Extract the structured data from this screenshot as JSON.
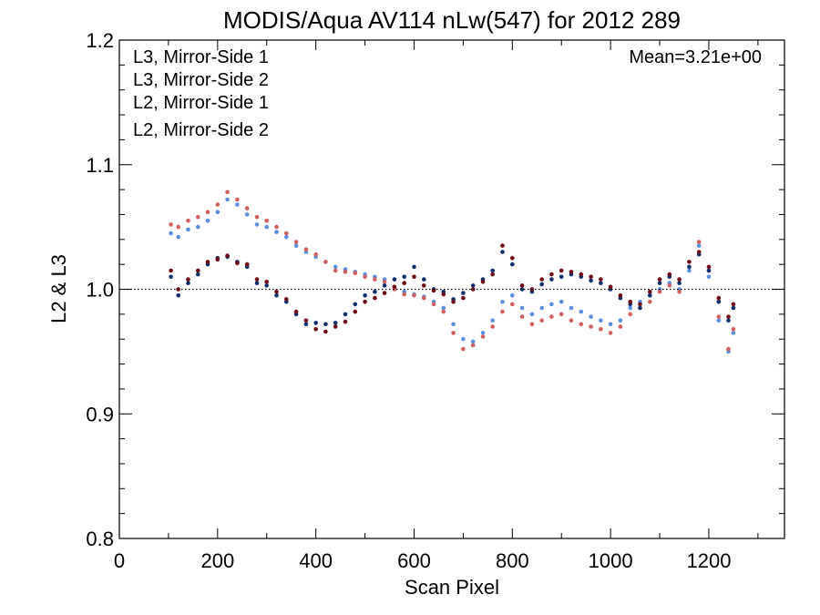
{
  "chart_data": {
    "type": "scatter",
    "title": "MODIS/Aqua AV114 nLw(547) for 2012 289",
    "xlabel": "Scan Pixel",
    "ylabel": "L2 & L3",
    "xlim": [
      0,
      1354
    ],
    "ylim": [
      0.8,
      1.2
    ],
    "x_ticks": [
      0,
      200,
      400,
      600,
      800,
      1000,
      1200
    ],
    "y_ticks": [
      0.8,
      0.9,
      1.0,
      1.1,
      1.2
    ],
    "x_tick_labels": [
      "0",
      "200",
      "400",
      "600",
      "800",
      "1000",
      "1200"
    ],
    "y_tick_labels": [
      "0.8",
      "0.9",
      "1.0",
      "1.1",
      "1.2"
    ],
    "reference_line": 1.0,
    "annotation": "Mean=3.21e+00",
    "annotation_color": "#d06060",
    "legend_position": "top-left",
    "grid": false,
    "series": [
      {
        "name": "L3, Mirror-Side 1",
        "color": "#0d2f6e",
        "x": [
          105,
          120,
          140,
          160,
          180,
          200,
          220,
          240,
          260,
          280,
          300,
          320,
          340,
          360,
          380,
          400,
          420,
          440,
          460,
          480,
          500,
          520,
          540,
          560,
          580,
          600,
          620,
          640,
          660,
          680,
          700,
          720,
          740,
          760,
          780,
          800,
          820,
          840,
          860,
          880,
          900,
          920,
          940,
          960,
          980,
          1000,
          1020,
          1040,
          1060,
          1080,
          1100,
          1120,
          1140,
          1160,
          1180,
          1200,
          1220,
          1240,
          1250
        ],
        "y": [
          1.01,
          0.995,
          1.005,
          1.012,
          1.02,
          1.025,
          1.026,
          1.022,
          1.018,
          1.005,
          1.003,
          0.995,
          0.99,
          0.98,
          0.972,
          0.973,
          0.972,
          0.973,
          0.98,
          0.988,
          0.995,
          0.998,
          1.003,
          1.008,
          1.01,
          1.018,
          1.008,
          1.0,
          0.998,
          0.992,
          0.997,
          1.003,
          1.008,
          1.015,
          1.03,
          1.02,
          1.0,
          0.998,
          1.004,
          1.008,
          1.01,
          1.012,
          1.01,
          1.007,
          1.005,
          1.0,
          0.993,
          0.988,
          0.985,
          0.995,
          1.005,
          1.01,
          1.005,
          1.018,
          1.028,
          1.015,
          0.99,
          0.975,
          0.985
        ]
      },
      {
        "name": "L3, Mirror-Side 2",
        "color": "#6e0a14",
        "x": [
          105,
          120,
          140,
          160,
          180,
          200,
          220,
          240,
          260,
          280,
          300,
          320,
          340,
          360,
          380,
          400,
          420,
          440,
          460,
          480,
          500,
          520,
          540,
          560,
          580,
          600,
          620,
          640,
          660,
          680,
          700,
          720,
          740,
          760,
          780,
          800,
          820,
          840,
          860,
          880,
          900,
          920,
          940,
          960,
          980,
          1000,
          1020,
          1040,
          1060,
          1080,
          1100,
          1120,
          1140,
          1160,
          1180,
          1200,
          1220,
          1240,
          1250
        ],
        "y": [
          1.015,
          1.0,
          1.008,
          1.015,
          1.022,
          1.024,
          1.027,
          1.021,
          1.02,
          1.008,
          1.006,
          0.998,
          0.992,
          0.982,
          0.975,
          0.968,
          0.966,
          0.97,
          0.974,
          0.982,
          0.99,
          0.993,
          0.997,
          1.002,
          1.005,
          1.01,
          1.003,
          0.999,
          0.996,
          0.99,
          0.993,
          1.0,
          1.006,
          1.012,
          1.035,
          1.025,
          1.003,
          1.0,
          1.008,
          1.012,
          1.015,
          1.014,
          1.012,
          1.01,
          1.008,
          1.002,
          0.995,
          0.99,
          0.988,
          0.998,
          1.008,
          1.012,
          1.008,
          1.022,
          1.03,
          1.018,
          0.993,
          0.978,
          0.988
        ]
      },
      {
        "name": "L2, Mirror-Side 1",
        "color": "#5b8fe0",
        "x": [
          105,
          120,
          140,
          160,
          180,
          200,
          220,
          240,
          260,
          280,
          300,
          320,
          340,
          360,
          380,
          400,
          420,
          440,
          460,
          480,
          500,
          520,
          540,
          560,
          580,
          600,
          620,
          640,
          660,
          680,
          700,
          720,
          740,
          760,
          780,
          800,
          820,
          840,
          860,
          880,
          900,
          920,
          940,
          960,
          980,
          1000,
          1020,
          1040,
          1060,
          1080,
          1100,
          1120,
          1140,
          1160,
          1180,
          1200,
          1220,
          1240,
          1250
        ],
        "y": [
          1.045,
          1.042,
          1.048,
          1.05,
          1.055,
          1.062,
          1.072,
          1.068,
          1.06,
          1.052,
          1.05,
          1.046,
          1.042,
          1.035,
          1.03,
          1.026,
          1.022,
          1.018,
          1.016,
          1.014,
          1.012,
          1.01,
          1.008,
          1.002,
          0.998,
          0.996,
          0.994,
          0.99,
          0.985,
          0.972,
          0.96,
          0.958,
          0.965,
          0.975,
          0.99,
          0.995,
          0.985,
          0.98,
          0.985,
          0.988,
          0.99,
          0.985,
          0.982,
          0.978,
          0.975,
          0.972,
          0.975,
          0.985,
          0.99,
          0.995,
          1.0,
          1.005,
          1.0,
          1.015,
          1.035,
          1.01,
          0.975,
          0.95,
          0.965
        ]
      },
      {
        "name": "L2, Mirror-Side 2",
        "color": "#d06060",
        "x": [
          105,
          120,
          140,
          160,
          180,
          200,
          220,
          240,
          260,
          280,
          300,
          320,
          340,
          360,
          380,
          400,
          420,
          440,
          460,
          480,
          500,
          520,
          540,
          560,
          580,
          600,
          620,
          640,
          660,
          680,
          700,
          720,
          740,
          760,
          780,
          800,
          820,
          840,
          860,
          880,
          900,
          920,
          940,
          960,
          980,
          1000,
          1020,
          1040,
          1060,
          1080,
          1100,
          1120,
          1140,
          1160,
          1180,
          1200,
          1220,
          1240,
          1250
        ],
        "y": [
          1.052,
          1.05,
          1.055,
          1.058,
          1.062,
          1.068,
          1.078,
          1.072,
          1.065,
          1.058,
          1.055,
          1.05,
          1.045,
          1.038,
          1.032,
          1.028,
          1.022,
          1.015,
          1.014,
          1.013,
          1.01,
          1.008,
          1.006,
          1.0,
          0.996,
          0.995,
          0.993,
          0.988,
          0.982,
          0.965,
          0.952,
          0.955,
          0.962,
          0.97,
          0.982,
          0.988,
          0.978,
          0.972,
          0.975,
          0.978,
          0.98,
          0.975,
          0.972,
          0.97,
          0.968,
          0.965,
          0.97,
          0.98,
          0.985,
          0.99,
          0.998,
          1.003,
          0.998,
          1.018,
          1.038,
          1.015,
          0.978,
          0.952,
          0.968
        ]
      }
    ]
  }
}
